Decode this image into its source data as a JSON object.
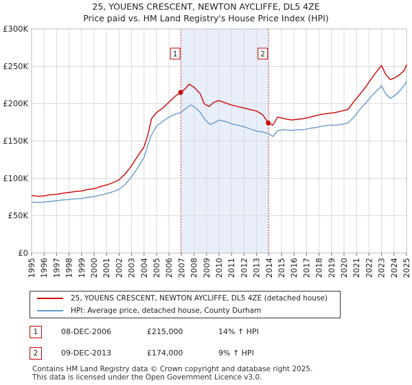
{
  "title_line1": "25, YOUENS CRESCENT, NEWTON AYCLIFFE, DL5 4ZE",
  "title_line2": "Price paid vs. HM Land Registry's House Price Index (HPI)",
  "chart_data": {
    "type": "line",
    "x_range": [
      1995,
      2025
    ],
    "ylim": [
      0,
      300000
    ],
    "y_ticks": [
      {
        "value": 0,
        "label": "£0"
      },
      {
        "value": 50000,
        "label": "£50K"
      },
      {
        "value": 100000,
        "label": "£100K"
      },
      {
        "value": 150000,
        "label": "£150K"
      },
      {
        "value": 200000,
        "label": "£200K"
      },
      {
        "value": 250000,
        "label": "£250K"
      },
      {
        "value": 300000,
        "label": "£300K"
      }
    ],
    "x_ticks": [
      "1995",
      "1996",
      "1997",
      "1998",
      "1999",
      "2000",
      "2001",
      "2002",
      "2003",
      "2004",
      "2005",
      "2006",
      "2007",
      "2008",
      "2009",
      "2010",
      "2011",
      "2012",
      "2013",
      "2014",
      "2015",
      "2016",
      "2017",
      "2018",
      "2019",
      "2020",
      "2021",
      "2022",
      "2023",
      "2024",
      "2025"
    ],
    "grid": true,
    "shaded_region": [
      2006.93,
      2013.94
    ],
    "series": [
      {
        "name": "25, YOUENS CRESCENT, NEWTON AYCLIFFE, DL5 4ZE (detached house)",
        "color": "#cc0000",
        "points": [
          [
            1995.0,
            77000
          ],
          [
            1995.5,
            76000
          ],
          [
            1996.0,
            76500
          ],
          [
            1996.5,
            78000
          ],
          [
            1997.0,
            78500
          ],
          [
            1997.5,
            80000
          ],
          [
            1998.0,
            81000
          ],
          [
            1998.5,
            82500
          ],
          [
            1999.0,
            83000
          ],
          [
            1999.5,
            85000
          ],
          [
            2000.0,
            86000
          ],
          [
            2000.5,
            89000
          ],
          [
            2001.0,
            91000
          ],
          [
            2001.5,
            94000
          ],
          [
            2002.0,
            98000
          ],
          [
            2002.5,
            106000
          ],
          [
            2003.0,
            117000
          ],
          [
            2003.5,
            130000
          ],
          [
            2004.0,
            142000
          ],
          [
            2004.3,
            158000
          ],
          [
            2004.6,
            180000
          ],
          [
            2005.0,
            188000
          ],
          [
            2005.5,
            194000
          ],
          [
            2006.0,
            202000
          ],
          [
            2006.5,
            210000
          ],
          [
            2006.93,
            215000
          ],
          [
            2007.3,
            220000
          ],
          [
            2007.6,
            226000
          ],
          [
            2008.0,
            222000
          ],
          [
            2008.5,
            213000
          ],
          [
            2008.8,
            200000
          ],
          [
            2009.2,
            196000
          ],
          [
            2009.6,
            202000
          ],
          [
            2010.0,
            204000
          ],
          [
            2010.5,
            201000
          ],
          [
            2011.0,
            198000
          ],
          [
            2011.5,
            196000
          ],
          [
            2012.0,
            194000
          ],
          [
            2012.5,
            192000
          ],
          [
            2013.0,
            190000
          ],
          [
            2013.5,
            185000
          ],
          [
            2013.94,
            174000
          ],
          [
            2014.3,
            171000
          ],
          [
            2014.7,
            182000
          ],
          [
            2015.2,
            180000
          ],
          [
            2015.8,
            178000
          ],
          [
            2016.3,
            179000
          ],
          [
            2016.8,
            180000
          ],
          [
            2017.3,
            182000
          ],
          [
            2017.8,
            184000
          ],
          [
            2018.3,
            186000
          ],
          [
            2018.8,
            187000
          ],
          [
            2019.3,
            188000
          ],
          [
            2019.8,
            190000
          ],
          [
            2020.3,
            192000
          ],
          [
            2020.8,
            203000
          ],
          [
            2021.3,
            213000
          ],
          [
            2021.8,
            224000
          ],
          [
            2022.3,
            236000
          ],
          [
            2022.8,
            247000
          ],
          [
            2023.0,
            251000
          ],
          [
            2023.3,
            240000
          ],
          [
            2023.7,
            232000
          ],
          [
            2024.0,
            234000
          ],
          [
            2024.4,
            238000
          ],
          [
            2024.8,
            244000
          ],
          [
            2025.0,
            252000
          ]
        ]
      },
      {
        "name": "HPI: Average price, detached house, County Durham",
        "color": "#6699cc",
        "points": [
          [
            1995.0,
            68000
          ],
          [
            1995.5,
            67500
          ],
          [
            1996.0,
            68000
          ],
          [
            1996.5,
            69000
          ],
          [
            1997.0,
            70000
          ],
          [
            1997.5,
            71000
          ],
          [
            1998.0,
            71500
          ],
          [
            1998.5,
            72500
          ],
          [
            1999.0,
            73000
          ],
          [
            1999.5,
            74500
          ],
          [
            2000.0,
            75500
          ],
          [
            2000.5,
            77500
          ],
          [
            2001.0,
            79500
          ],
          [
            2001.5,
            82000
          ],
          [
            2002.0,
            85000
          ],
          [
            2002.5,
            92000
          ],
          [
            2003.0,
            102000
          ],
          [
            2003.5,
            114000
          ],
          [
            2004.0,
            128000
          ],
          [
            2004.5,
            155000
          ],
          [
            2005.0,
            170000
          ],
          [
            2005.5,
            176000
          ],
          [
            2006.0,
            182000
          ],
          [
            2006.5,
            186000
          ],
          [
            2006.93,
            188000
          ],
          [
            2007.3,
            193000
          ],
          [
            2007.7,
            198000
          ],
          [
            2008.0,
            196000
          ],
          [
            2008.5,
            188000
          ],
          [
            2008.9,
            178000
          ],
          [
            2009.3,
            172000
          ],
          [
            2009.7,
            175000
          ],
          [
            2010.0,
            178000
          ],
          [
            2010.5,
            176000
          ],
          [
            2011.0,
            173000
          ],
          [
            2011.5,
            171000
          ],
          [
            2012.0,
            169000
          ],
          [
            2012.5,
            166000
          ],
          [
            2013.0,
            163000
          ],
          [
            2013.5,
            162000
          ],
          [
            2013.94,
            160000
          ],
          [
            2014.3,
            156000
          ],
          [
            2014.7,
            164000
          ],
          [
            2015.2,
            165000
          ],
          [
            2015.8,
            164000
          ],
          [
            2016.3,
            165000
          ],
          [
            2016.8,
            165000
          ],
          [
            2017.3,
            167000
          ],
          [
            2017.8,
            168000
          ],
          [
            2018.3,
            170000
          ],
          [
            2018.8,
            171000
          ],
          [
            2019.3,
            171000
          ],
          [
            2019.8,
            172000
          ],
          [
            2020.3,
            174000
          ],
          [
            2020.8,
            182000
          ],
          [
            2021.3,
            193000
          ],
          [
            2021.8,
            202000
          ],
          [
            2022.3,
            212000
          ],
          [
            2022.8,
            220000
          ],
          [
            2023.0,
            224000
          ],
          [
            2023.3,
            214000
          ],
          [
            2023.7,
            207000
          ],
          [
            2024.0,
            210000
          ],
          [
            2024.4,
            216000
          ],
          [
            2024.8,
            224000
          ],
          [
            2025.0,
            230000
          ]
        ]
      }
    ],
    "sales": [
      {
        "id": "1",
        "x": 2006.93,
        "value": 215000
      },
      {
        "id": "2",
        "x": 2013.94,
        "value": 174000
      }
    ]
  },
  "legend": {
    "property_label": "25, YOUENS CRESCENT, NEWTON AYCLIFFE, DL5 4ZE (detached house)",
    "hpi_label": "HPI: Average price, detached house, County Durham"
  },
  "sales_table": [
    {
      "id": "1",
      "date": "08-DEC-2006",
      "price": "£215,000",
      "hpi": "14% ↑ HPI"
    },
    {
      "id": "2",
      "date": "09-DEC-2013",
      "price": "£174,000",
      "hpi": "9% ↑ HPI"
    }
  ],
  "footer": {
    "line1": "Contains HM Land Registry data © Crown copyright and database right 2025.",
    "line2": "This data is licensed under the Open Government Licence v3.0."
  }
}
